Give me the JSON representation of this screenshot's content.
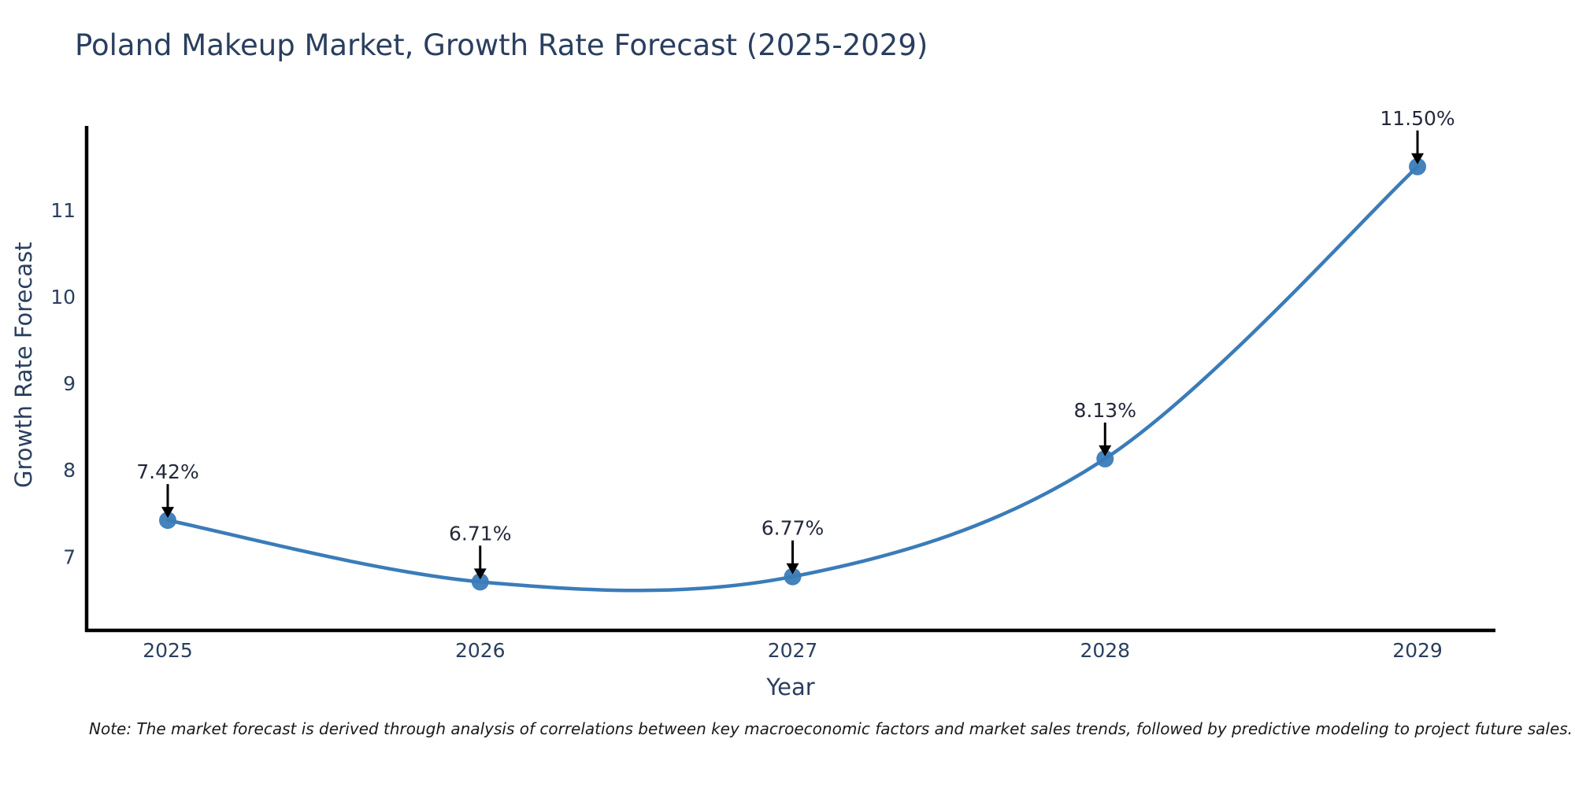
{
  "note": "Note: The market forecast is derived through analysis of correlations between key macroeconomic factors and market sales trends, followed by predictive modeling to project future sales.",
  "chart_data": {
    "type": "line",
    "title": "Poland Makeup Market, Growth Rate Forecast (2025-2029)",
    "xlabel": "Year",
    "ylabel": "Growth Rate Forecast",
    "categories": [
      "2025",
      "2026",
      "2027",
      "2028",
      "2029"
    ],
    "values": [
      7.42,
      6.71,
      6.77,
      8.13,
      11.5
    ],
    "point_labels": [
      "7.42%",
      "6.71%",
      "6.77%",
      "8.13%",
      "11.50%"
    ],
    "yticks": [
      7,
      8,
      9,
      10,
      11
    ],
    "ylim": [
      6.15,
      11.97
    ],
    "grid": false,
    "legend": "none",
    "line_shape": "spline",
    "colors": {
      "line": "#3a7cb8",
      "marker": "#3a7cb8",
      "axis": "#000000",
      "tick_text": "#2a3f5f",
      "annotation_text": "#23283a",
      "arrow": "#000000",
      "background": "#ffffff"
    }
  }
}
